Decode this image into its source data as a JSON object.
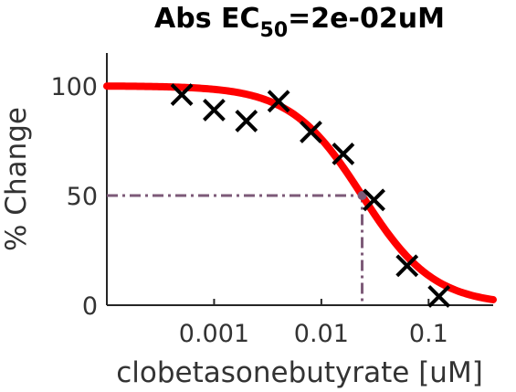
{
  "chart_data": {
    "type": "scatter",
    "title_prefix": "Abs EC",
    "title_subscript": "50",
    "title_suffix": "=2e-02uM",
    "xlabel": "clobetasonebutyrate [uM]",
    "ylabel": "% Change",
    "x_scale": "log",
    "xlim": [
      0.0001,
      0.4
    ],
    "ylim": [
      0,
      115
    ],
    "x_ticks": [
      {
        "value": 0.001,
        "label": "0.001"
      },
      {
        "value": 0.01,
        "label": "0.01"
      },
      {
        "value": 0.1,
        "label": "0.1"
      }
    ],
    "y_ticks": [
      {
        "value": 0,
        "label": "0"
      },
      {
        "value": 50,
        "label": "50"
      },
      {
        "value": 100,
        "label": "100"
      }
    ],
    "grid": false,
    "points": [
      {
        "x": 0.0005,
        "y": 96
      },
      {
        "x": 0.001,
        "y": 89
      },
      {
        "x": 0.002,
        "y": 84
      },
      {
        "x": 0.004,
        "y": 93
      },
      {
        "x": 0.008,
        "y": 79
      },
      {
        "x": 0.016,
        "y": 69
      },
      {
        "x": 0.031,
        "y": 48
      },
      {
        "x": 0.063,
        "y": 18
      },
      {
        "x": 0.125,
        "y": 4
      }
    ],
    "fit": {
      "top": 100,
      "bottom": 0,
      "ec50": 0.024,
      "hill": 1.3
    },
    "ec50_marker": {
      "x": 0.024,
      "y": 50
    },
    "colors": {
      "fit": "#ff0000",
      "points": "#000000",
      "ec50_guide": "#7d5a78",
      "axis": "#262626"
    }
  }
}
